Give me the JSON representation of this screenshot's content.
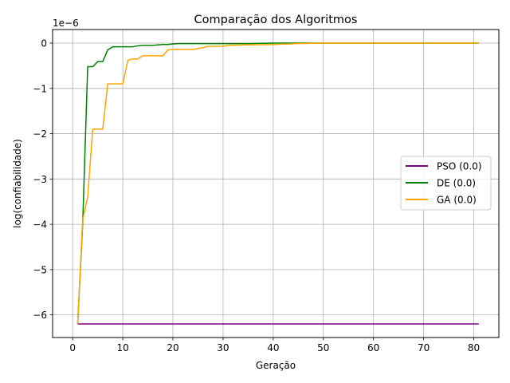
{
  "chart_data": {
    "type": "line",
    "title": "Comparação dos Algoritmos",
    "xlabel": "Geração",
    "ylabel": "log(confiabilidade)",
    "offset_text": "1e−6",
    "xlim": [
      -4,
      85
    ],
    "ylim": [
      -6.5,
      0.3
    ],
    "xticks": [
      0,
      10,
      20,
      30,
      40,
      50,
      60,
      70,
      80
    ],
    "xtick_labels": [
      "0",
      "10",
      "20",
      "30",
      "40",
      "50",
      "60",
      "70",
      "80"
    ],
    "yticks": [
      -6,
      -5,
      -4,
      -3,
      -2,
      -1,
      0
    ],
    "ytick_labels": [
      "−6",
      "−5",
      "−4",
      "−3",
      "−2",
      "−1",
      "0"
    ],
    "grid": true,
    "legend_position": "center-right",
    "series": [
      {
        "name": "PSO (0.0)",
        "color": "#800080",
        "x": [
          1,
          81
        ],
        "y": [
          -6.2,
          -6.2
        ]
      },
      {
        "name": "DE (0.0)",
        "color": "#008000",
        "x": [
          1,
          2,
          3,
          4,
          5,
          6,
          7,
          8,
          9,
          10,
          11,
          12,
          13,
          14,
          15,
          16,
          17,
          18,
          19,
          20,
          21,
          25,
          30,
          35,
          40,
          50,
          81
        ],
        "y": [
          -6.2,
          -4.0,
          -0.52,
          -0.52,
          -0.41,
          -0.41,
          -0.15,
          -0.08,
          -0.08,
          -0.08,
          -0.08,
          -0.08,
          -0.06,
          -0.05,
          -0.05,
          -0.05,
          -0.04,
          -0.03,
          -0.03,
          -0.02,
          -0.01,
          -0.01,
          -0.01,
          -0.01,
          0.0,
          0.0,
          0.0
        ]
      },
      {
        "name": "GA (0.0)",
        "color": "#FFA500",
        "x": [
          1,
          2,
          3,
          4,
          5,
          6,
          7,
          8,
          9,
          10,
          11,
          12,
          13,
          14,
          15,
          16,
          17,
          18,
          19,
          20,
          21,
          22,
          23,
          24,
          25,
          26,
          27,
          28,
          29,
          30,
          31,
          35,
          40,
          45,
          50,
          81
        ],
        "y": [
          -6.2,
          -3.9,
          -3.4,
          -1.9,
          -1.9,
          -1.9,
          -0.9,
          -0.9,
          -0.9,
          -0.9,
          -0.38,
          -0.35,
          -0.35,
          -0.28,
          -0.28,
          -0.28,
          -0.28,
          -0.28,
          -0.15,
          -0.14,
          -0.14,
          -0.14,
          -0.14,
          -0.14,
          -0.12,
          -0.1,
          -0.07,
          -0.07,
          -0.07,
          -0.07,
          -0.05,
          -0.04,
          -0.03,
          -0.01,
          0.0,
          0.0
        ]
      }
    ]
  }
}
